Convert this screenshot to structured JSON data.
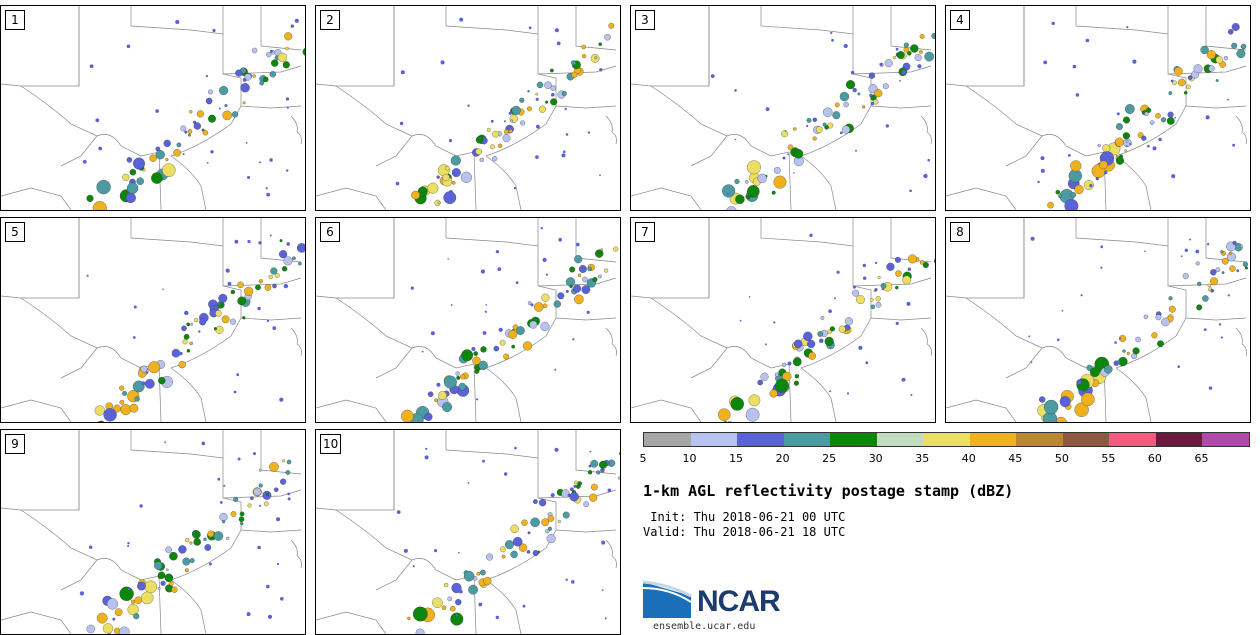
{
  "panels": [
    {
      "label": "1"
    },
    {
      "label": "2"
    },
    {
      "label": "3"
    },
    {
      "label": "4"
    },
    {
      "label": "5"
    },
    {
      "label": "6"
    },
    {
      "label": "7"
    },
    {
      "label": "8"
    },
    {
      "label": "9"
    },
    {
      "label": "10"
    }
  ],
  "colorbar": {
    "colors": [
      "#a6a6a6",
      "#b7c3ee",
      "#5a62d8",
      "#4c9ba2",
      "#0d860d",
      "#c1ddc0",
      "#ecde62",
      "#efb21e",
      "#b98631",
      "#8b5a40",
      "#f35a80",
      "#6a1a3f",
      "#b04aa8"
    ],
    "tick_labels": [
      "5",
      "10",
      "15",
      "20",
      "25",
      "30",
      "35",
      "40",
      "45",
      "50",
      "55",
      "60",
      "65"
    ]
  },
  "title": "1-km AGL reflectivity postage stamp (dBZ)",
  "init_line": " Init: Thu 2018-06-21 00 UTC",
  "valid_line": "Valid: Thu 2018-06-21 18 UTC",
  "logo": {
    "word": "NCAR",
    "site": "ensemble.ucar.edu"
  }
}
